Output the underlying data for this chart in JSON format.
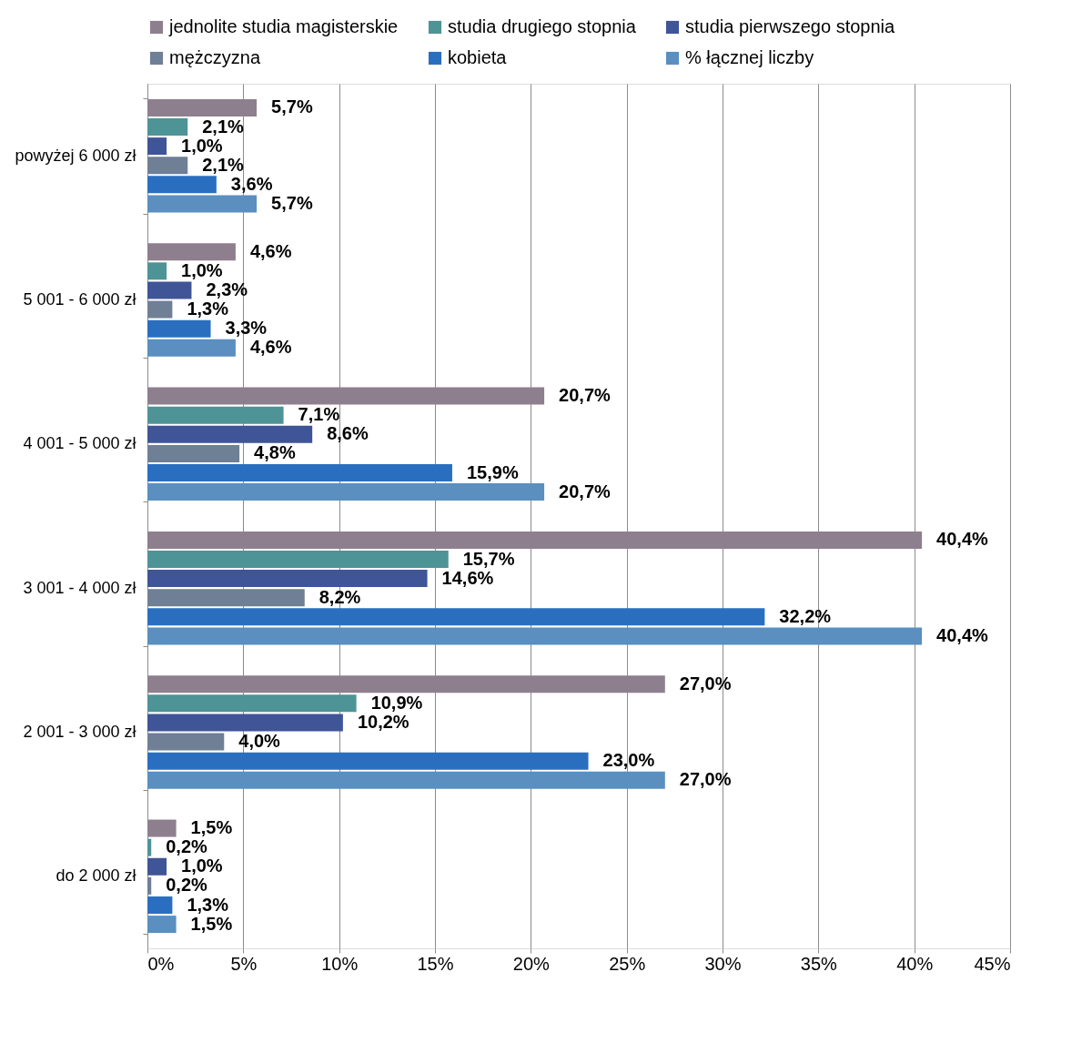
{
  "chart_data": {
    "type": "bar",
    "orientation": "horizontal",
    "categories": [
      "powyżej 6 000 zł",
      "5 001 - 6 000 zł",
      "4 001 - 5 000 zł",
      "3 001 - 4 000 zł",
      "2 001 - 3 000 zł",
      "do 2 000 zł"
    ],
    "series": [
      {
        "name": "jednolite studia magisterskie",
        "color": "#8e7f8e",
        "values": [
          5.7,
          4.6,
          20.7,
          40.4,
          27.0,
          1.5
        ],
        "value_labels": [
          "5,7%",
          "4,6%",
          "20,7%",
          "40,4%",
          "27,0%",
          "1,5%"
        ]
      },
      {
        "name": "studia drugiego stopnia",
        "color": "#4e9396",
        "values": [
          2.1,
          1.0,
          7.1,
          15.7,
          10.9,
          0.2
        ],
        "value_labels": [
          "2,1%",
          "1,0%",
          "7,1%",
          "15,7%",
          "10,9%",
          "0,2%"
        ]
      },
      {
        "name": "studia pierwszego stopnia",
        "color": "#3f5597",
        "values": [
          1.0,
          2.3,
          8.6,
          14.6,
          10.2,
          1.0
        ],
        "value_labels": [
          "1,0%",
          "2,3%",
          "8,6%",
          "14,6%",
          "10,2%",
          "1,0%"
        ]
      },
      {
        "name": "mężczyzna",
        "color": "#6f7f96",
        "values": [
          2.1,
          1.3,
          4.8,
          8.2,
          4.0,
          0.2
        ],
        "value_labels": [
          "2,1%",
          "1,3%",
          "4,8%",
          "8,2%",
          "4,0%",
          "0,2%"
        ]
      },
      {
        "name": "kobieta",
        "color": "#2a6fbf",
        "values": [
          3.6,
          3.3,
          15.9,
          32.2,
          23.0,
          1.3
        ],
        "value_labels": [
          "3,6%",
          "3,3%",
          "15,9%",
          "32,2%",
          "23,0%",
          "1,3%"
        ]
      },
      {
        "name": "% łącznej liczby",
        "color": "#5a8fc0",
        "values": [
          5.7,
          4.6,
          20.7,
          40.4,
          27.0,
          1.5
        ],
        "value_labels": [
          "5,7%",
          "4,6%",
          "20,7%",
          "40,4%",
          "27,0%",
          "1,5%"
        ]
      }
    ],
    "xlim": [
      0,
      45
    ],
    "xticks": [
      {
        "value": 0,
        "label": "0%"
      },
      {
        "value": 5,
        "label": "5%"
      },
      {
        "value": 10,
        "label": "10%"
      },
      {
        "value": 15,
        "label": "15%"
      },
      {
        "value": 20,
        "label": "20%"
      },
      {
        "value": 25,
        "label": "25%"
      },
      {
        "value": 30,
        "label": "30%"
      },
      {
        "value": 35,
        "label": "35%"
      },
      {
        "value": 40,
        "label": "40%"
      },
      {
        "value": 45,
        "label": "45%"
      }
    ],
    "grid": "x",
    "legend": "top"
  }
}
